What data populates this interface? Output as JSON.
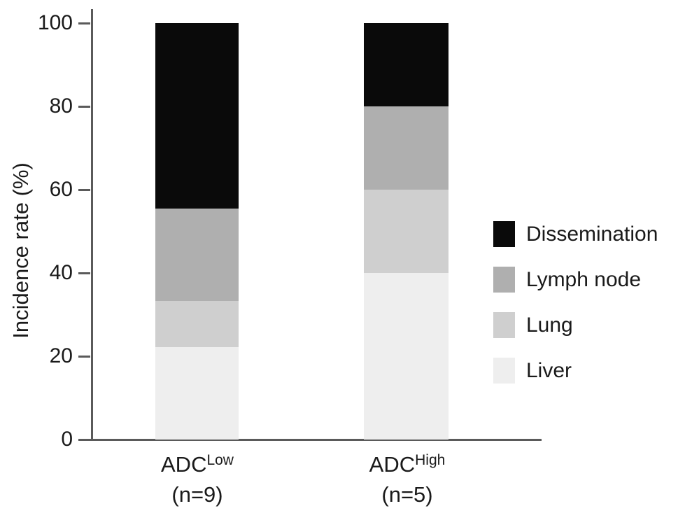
{
  "chart_data": {
    "type": "bar",
    "subtype": "stacked",
    "title": "",
    "ylabel": "Incidence rate (%)",
    "xlabel": "",
    "ylim": [
      0,
      100
    ],
    "yticks": [
      0,
      20,
      40,
      60,
      80,
      100
    ],
    "grid": false,
    "legend_position": "right",
    "categories": [
      "ADC Low (n=9)",
      "ADC High (n=5)"
    ],
    "groups": [
      {
        "base": "ADC",
        "sup": "Low",
        "n_label": "(n=9)"
      },
      {
        "base": "ADC",
        "sup": "High",
        "n_label": "(n=5)"
      }
    ],
    "series": [
      {
        "name": "Liver",
        "color": "#eeeeee",
        "values": [
          22.2,
          40
        ]
      },
      {
        "name": "Lung",
        "color": "#cfcfcf",
        "values": [
          11.1,
          20
        ]
      },
      {
        "name": "Lymph node",
        "color": "#afafaf",
        "values": [
          22.2,
          20
        ]
      },
      {
        "name": "Dissemination",
        "color": "#0a0a0a",
        "values": [
          44.5,
          20
        ]
      }
    ],
    "legend_order_top_to_bottom": [
      "Dissemination",
      "Lymph node",
      "Lung",
      "Liver"
    ]
  },
  "colors": {
    "axis": "#5a5a5a",
    "text": "#1a1a1a",
    "background": "#ffffff"
  }
}
